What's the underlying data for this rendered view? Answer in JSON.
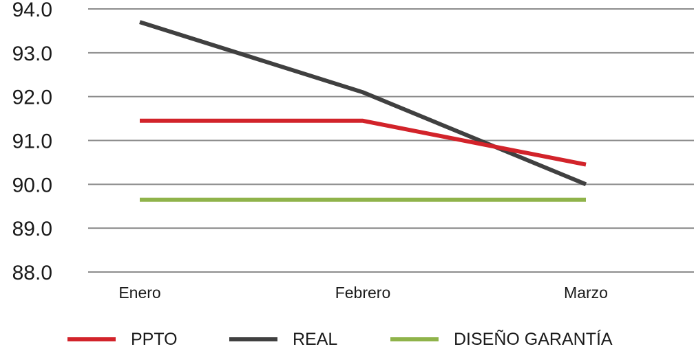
{
  "chart_data": {
    "type": "line",
    "title": "",
    "xlabel": "",
    "ylabel": "",
    "categories": [
      "Enero",
      "Febrero",
      "Marzo"
    ],
    "ylim": [
      88.0,
      94.0
    ],
    "yticks": [
      "94.0",
      "93.0",
      "92.0",
      "91.0",
      "90.0",
      "89.0",
      "88.0"
    ],
    "grid": true,
    "legend_position": "bottom",
    "series": [
      {
        "name": "PPTO",
        "color": "#d2232a",
        "values": [
          91.45,
          91.45,
          90.45
        ]
      },
      {
        "name": "REAL",
        "color": "#404040",
        "values": [
          93.7,
          92.1,
          90.0
        ]
      },
      {
        "name": "DISEÑO GARANTÍA",
        "color": "#8fb34a",
        "values": [
          89.65,
          89.65,
          89.65
        ]
      }
    ]
  }
}
